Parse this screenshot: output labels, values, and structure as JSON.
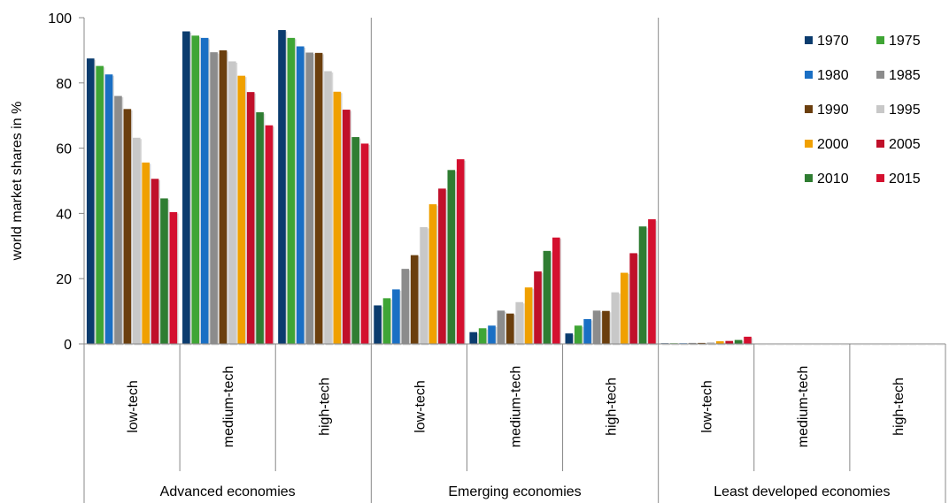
{
  "chart_data": {
    "type": "bar",
    "ylabel": "world market shares in %",
    "ylim": [
      0,
      100
    ],
    "yticks": [
      0,
      20,
      40,
      60,
      80,
      100
    ],
    "grid": false,
    "legend_position": "top-right",
    "groups": [
      {
        "name": "Advanced economies",
        "categories": [
          "low-tech",
          "medium-tech",
          "high-tech"
        ]
      },
      {
        "name": "Emerging economies",
        "categories": [
          "low-tech",
          "medium-tech",
          "high-tech"
        ]
      },
      {
        "name": "Least developed economies",
        "categories": [
          "low-tech",
          "medium-tech",
          "high-tech"
        ]
      }
    ],
    "series": [
      {
        "name": "1970",
        "color": "#0b3c6e",
        "values": [
          87.5,
          95.8,
          96.2,
          11.8,
          3.6,
          3.2,
          0.2,
          0.1,
          0.1
        ]
      },
      {
        "name": "1975",
        "color": "#3fa535",
        "values": [
          85.2,
          94.5,
          93.8,
          14.0,
          4.8,
          5.6,
          0.2,
          0.1,
          0.1
        ]
      },
      {
        "name": "1980",
        "color": "#1a6fc4",
        "values": [
          82.6,
          93.8,
          91.2,
          16.7,
          5.6,
          7.6,
          0.2,
          0.1,
          0.1
        ]
      },
      {
        "name": "1985",
        "color": "#8c8c8c",
        "values": [
          76.0,
          89.4,
          89.3,
          23.0,
          10.2,
          10.2,
          0.3,
          0.1,
          0.1
        ]
      },
      {
        "name": "1990",
        "color": "#6b3f0e",
        "values": [
          72.0,
          90.0,
          89.2,
          27.2,
          9.3,
          10.1,
          0.3,
          0.1,
          0.1
        ]
      },
      {
        "name": "1995",
        "color": "#c8c8c8",
        "values": [
          63.2,
          86.6,
          83.6,
          35.8,
          12.8,
          15.8,
          0.5,
          0.1,
          0.1
        ]
      },
      {
        "name": "2000",
        "color": "#f0a000",
        "values": [
          55.6,
          82.2,
          77.3,
          42.8,
          17.3,
          21.8,
          0.8,
          0.1,
          0.1
        ]
      },
      {
        "name": "2005",
        "color": "#c0102a",
        "values": [
          50.6,
          77.2,
          71.8,
          47.6,
          22.2,
          27.8,
          0.9,
          0.1,
          0.1
        ]
      },
      {
        "name": "2010",
        "color": "#2f7d32",
        "values": [
          44.6,
          71.0,
          63.4,
          53.3,
          28.5,
          36.0,
          1.2,
          0.1,
          0.1
        ]
      },
      {
        "name": "2015",
        "color": "#d4102f",
        "values": [
          40.4,
          67.0,
          61.4,
          56.6,
          32.6,
          38.2,
          2.2,
          0.1,
          0.1
        ]
      }
    ]
  }
}
